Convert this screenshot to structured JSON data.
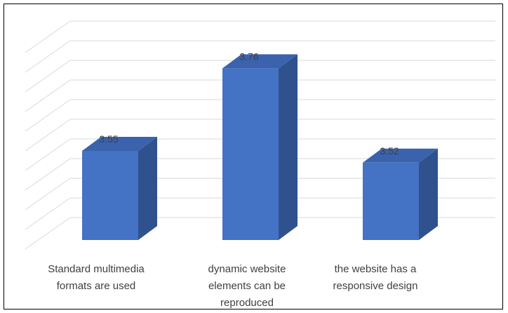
{
  "chart_data": {
    "type": "bar",
    "three_d": true,
    "categories": [
      "Standard multimedia formats are used",
      "dynamic website elements can be reproduced",
      "the website has a responsive design"
    ],
    "category_lines": [
      [
        "Standard multimedia",
        "formats are used"
      ],
      [
        "dynamic website",
        "elements can be",
        "reproduced"
      ],
      [
        "the website has a",
        "responsive design"
      ]
    ],
    "values": [
      3.55,
      3.76,
      3.52
    ],
    "value_labels": [
      "3.55",
      "3.76",
      "3.52"
    ],
    "ylim": [
      3.3,
      3.8
    ],
    "grid": true,
    "legend": "none",
    "bar_color": "#4472c4",
    "bar_side_color": "#2f528f",
    "bar_top_color": "#3a62ad",
    "grid_color": "#d9d9d9"
  }
}
